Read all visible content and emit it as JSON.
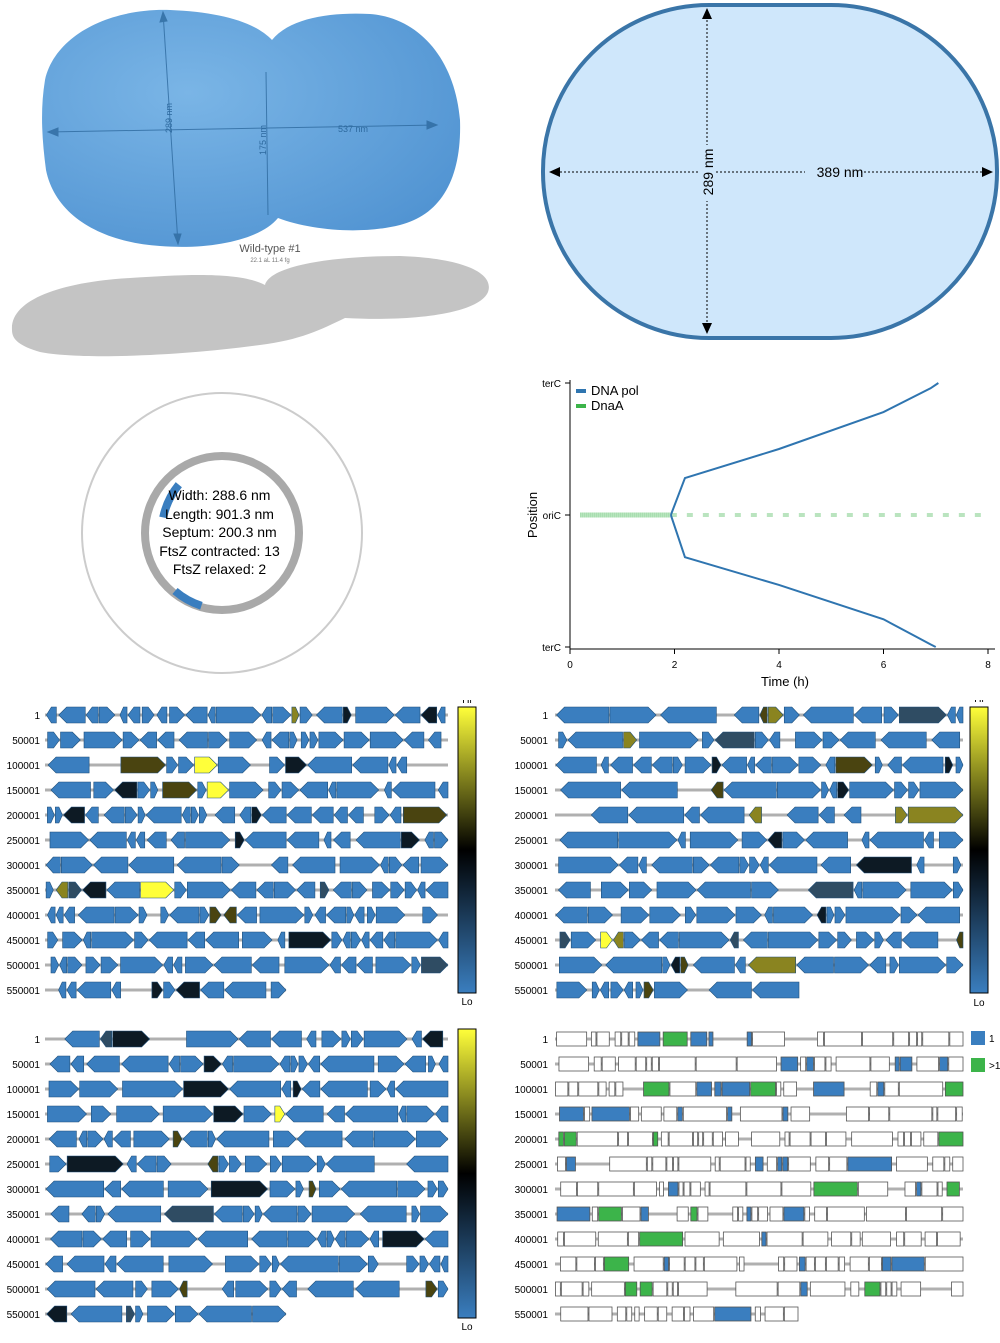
{
  "colors": {
    "cell_fill": "#5b9bd5",
    "schematic_fill": "#cfe7fb",
    "schematic_stroke": "#3a75a8",
    "gene_blue": "#3a7ebf",
    "gene_yellow": "#ffff3a",
    "gene_black": "#000000",
    "dna_pol": "#2f75b0",
    "dnaa": "#3cb44a",
    "gene_green": "#3cb44a",
    "shadow": "#c4c4c4"
  },
  "cell_3d": {
    "width_label": "289 nm",
    "septum_label": "175 nm",
    "length_label": "537 nm",
    "caption": "Wild-type #1",
    "subcaption": "22.1 aL  11.4 fg"
  },
  "cell_schematic": {
    "width_label": "289 nm",
    "length_label": "389 nm"
  },
  "ftsz_ring": {
    "stats": [
      {
        "key": "width",
        "text": "Width: 288.6 nm"
      },
      {
        "key": "length",
        "text": "Length: 901.3 nm"
      },
      {
        "key": "septum",
        "text": "Septum: 200.3 nm"
      },
      {
        "key": "contracted",
        "text": "FtsZ contracted: 13"
      },
      {
        "key": "relaxed",
        "text": "FtsZ relaxed: 2"
      }
    ]
  },
  "chart_data": {
    "type": "line",
    "xlabel": "Time (h)",
    "ylabel": "Position",
    "xlim": [
      0,
      8
    ],
    "x_ticks": [
      "0",
      "2",
      "4",
      "6",
      "8"
    ],
    "y_ticks": [
      "terC",
      "oriC",
      "terC"
    ],
    "legend_position": "top-left",
    "series": [
      {
        "name": "DNA pol",
        "color": "#2f75b0",
        "upper": [
          [
            1.93,
            0
          ],
          [
            2.2,
            0.28
          ],
          [
            4,
            0.5
          ],
          [
            6,
            0.78
          ],
          [
            6.9,
            0.96
          ],
          [
            7.05,
            1.0
          ]
        ],
        "lower": [
          [
            1.93,
            0
          ],
          [
            2.2,
            -0.32
          ],
          [
            4,
            -0.53
          ],
          [
            6,
            -0.79
          ],
          [
            6.9,
            -0.98
          ],
          [
            7.0,
            -1.0
          ]
        ]
      },
      {
        "name": "DnaA",
        "color": "#3cb44a",
        "y": 0,
        "x_range": [
          0.2,
          8
        ]
      }
    ]
  },
  "gene_maps": [
    {
      "id": "map-tl",
      "show_colorbar": true,
      "colorbar_hi": "Hi",
      "colorbar_lo": "Lo"
    },
    {
      "id": "map-tr",
      "show_colorbar": true,
      "colorbar_hi": "Hi",
      "colorbar_lo": "Lo"
    },
    {
      "id": "map-bl",
      "show_colorbar": true,
      "colorbar_hi": "Hi",
      "colorbar_lo": "Lo"
    },
    {
      "id": "map-br",
      "show_colorbar": false,
      "legend": [
        {
          "label": "1",
          "color": "#3a7ebf"
        },
        {
          "label": ">1",
          "color": "#3cb44a"
        }
      ]
    }
  ],
  "gene_rows": [
    "1",
    "50001",
    "100001",
    "150001",
    "200001",
    "250001",
    "300001",
    "350001",
    "400001",
    "450001",
    "500001",
    "550001"
  ]
}
